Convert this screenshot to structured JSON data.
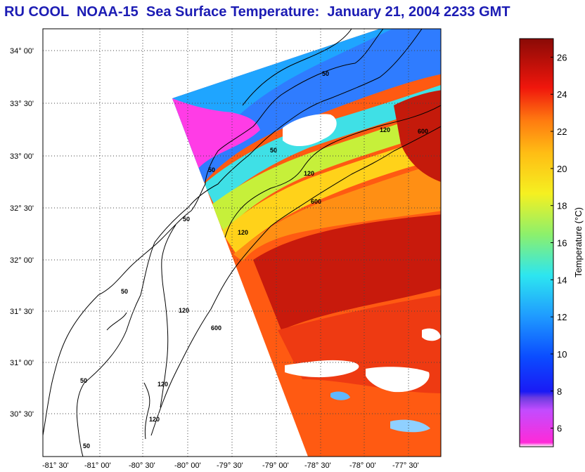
{
  "title": "RU COOL  NOAA-15  Sea Surface Temperature:  January 21, 2004 2233 GMT",
  "map": {
    "lat_ticks": [
      "34° 00'",
      "33° 30'",
      "33° 00'",
      "32° 30'",
      "32° 00'",
      "31° 30'",
      "31° 00'",
      "30° 30'"
    ],
    "lon_ticks": [
      "-81° 30'",
      "-81° 00'",
      "-80° 30'",
      "-80° 00'",
      "-79° 30'",
      "-79° 00'",
      "-78° 30'",
      "-78° 00'",
      "-77° 30'"
    ],
    "contour_labels": [
      "50",
      "50",
      "120",
      "600",
      "50",
      "120",
      "600",
      "120",
      "50",
      "120",
      "600",
      "50",
      "120",
      "50",
      "120",
      "50"
    ]
  },
  "colorbar": {
    "label": "Temperature (°C)",
    "ticks": [
      "26",
      "24",
      "22",
      "20",
      "18",
      "16",
      "14",
      "12",
      "10",
      "8",
      "6"
    ],
    "min": 5,
    "max": 27
  },
  "colors": {
    "title": "#1c1cb4",
    "land": "#ffffff",
    "cloud": "#ffffff",
    "grid": "#555555"
  }
}
